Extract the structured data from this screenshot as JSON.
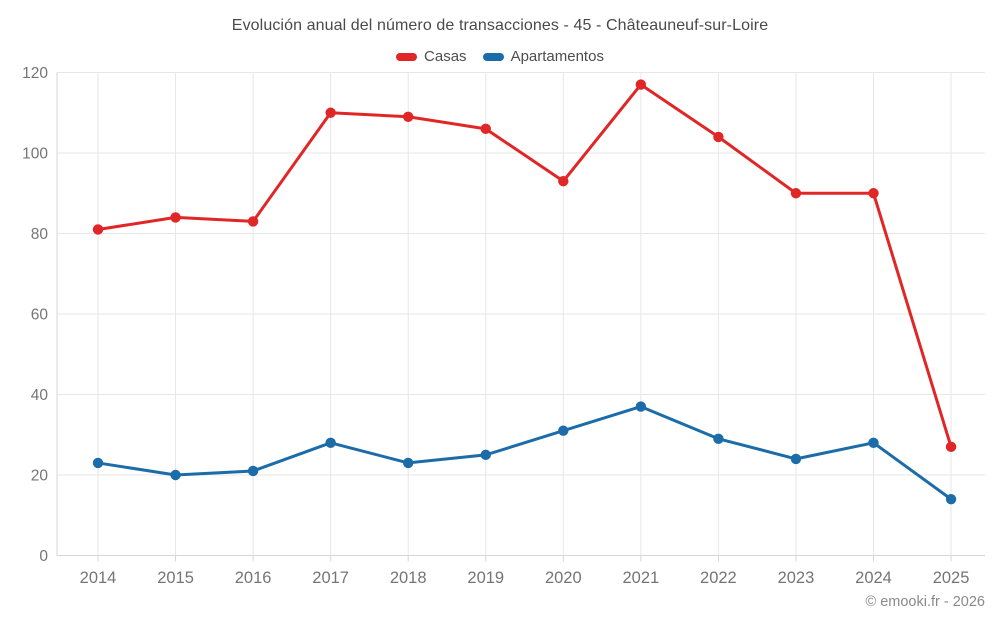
{
  "title": "Evolución anual del número de transacciones - 45 - Châteauneuf-sur-Loire",
  "footer": "© emooki.fr - 2026",
  "legend": {
    "items": [
      {
        "label": "Casas",
        "color": "#e02626"
      },
      {
        "label": "Apartamentos",
        "color": "#1b6ca8"
      }
    ]
  },
  "colors": {
    "casas": "#e02626",
    "apartamentos": "#1b6ca8",
    "gridline": "#e7e7e7",
    "axis_line": "#d6d6d6",
    "tick_label": "#757575",
    "title_text": "#4a4a4a",
    "footer_text": "#8a8a8a"
  },
  "chart_data": {
    "type": "line",
    "title": "Evolución anual del número de transacciones - 45 - Châteauneuf-sur-Loire",
    "x": [
      2014,
      2015,
      2016,
      2017,
      2018,
      2019,
      2020,
      2021,
      2022,
      2023,
      2024,
      2025
    ],
    "series": [
      {
        "name": "Casas",
        "color": "#e02626",
        "values": [
          81,
          84,
          83,
          110,
          109,
          106,
          93,
          117,
          104,
          90,
          90,
          27
        ]
      },
      {
        "name": "Apartamentos",
        "color": "#1b6ca8",
        "values": [
          23,
          20,
          21,
          28,
          23,
          25,
          31,
          37,
          29,
          24,
          28,
          14
        ]
      }
    ],
    "xlabel": "",
    "ylabel": "",
    "ylim": [
      0,
      120
    ],
    "yticks": [
      0,
      20,
      40,
      60,
      80,
      100,
      120
    ],
    "grid": true,
    "legend_position": "top",
    "marker": "circle"
  }
}
